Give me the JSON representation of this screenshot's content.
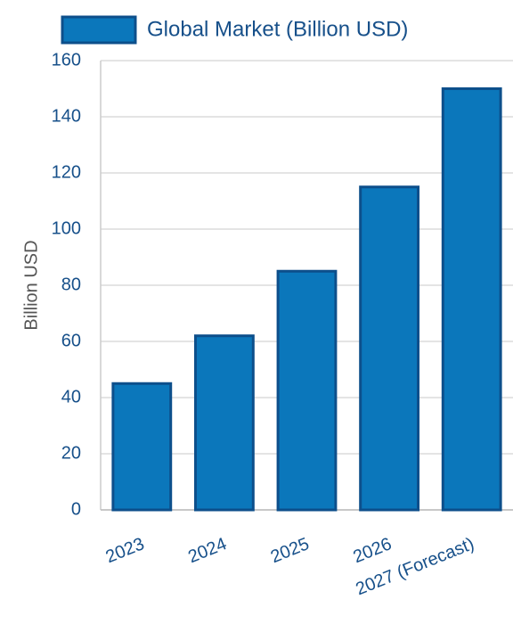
{
  "chart_data": {
    "type": "bar",
    "categories": [
      "2023",
      "2024",
      "2025",
      "2026",
      "2027 (Forecast)"
    ],
    "series": [
      {
        "name": "Global Market (Billion USD)",
        "color": "#0b77bb",
        "values": [
          45,
          62,
          85,
          115,
          150
        ]
      }
    ],
    "y_label": "Billion USD",
    "ylim": [
      0,
      160
    ],
    "yticks": [
      0,
      20,
      40,
      60,
      80,
      100,
      120,
      140,
      160
    ],
    "grid": true,
    "legend": "top"
  }
}
